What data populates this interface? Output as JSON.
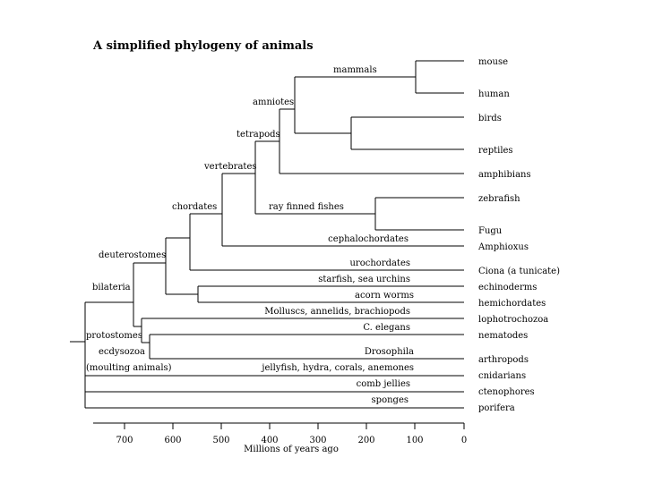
{
  "figure": {
    "title": "A simplified phylogeny of animals",
    "axis": {
      "label": "Millions of years ago",
      "ticks": [
        "700",
        "600",
        "500",
        "400",
        "300",
        "200",
        "100",
        "0"
      ]
    },
    "taxa": {
      "mouse": "mouse",
      "human": "human",
      "birds": "birds",
      "reptiles": "reptiles",
      "amphibians": "amphibians",
      "zebrafish": "zebrafish",
      "fugu": "Fugu",
      "amphioxus": "Amphioxus",
      "ciona": "Ciona (a tunicate)",
      "echinoderms": "echinoderms",
      "hemichordates": "hemichordates",
      "lophotrochozoa": "lophotrochozoa",
      "nematodes": "nematodes",
      "arthropods": "arthropods",
      "cnidarians": "cnidarians",
      "ctenophores": "ctenophores",
      "porifera": "porifera"
    },
    "clades": {
      "mammals": "mammals",
      "amniotes": "amniotes",
      "tetrapods": "tetrapods",
      "vertebrates": "vertebrates",
      "chordates": "chordates",
      "deuterostomes": "deuterostomes",
      "bilateria": "bilateria",
      "protostomes": "protostomes",
      "ecdysozoa": "ecdysozoa",
      "moulting": "(moulting animals)"
    },
    "branches": {
      "ray_finned_fishes": "ray finned fishes",
      "cephalochordates": "cephalochordates",
      "urochordates": "urochordates",
      "starfish": "starfish, sea urchins",
      "acorn_worms": "acorn worms",
      "molluscs": "Molluscs, annelids, brachiopods",
      "c_elegans": "C. elegans",
      "drosophila": "Drosophila",
      "jellyfish": "jellyfish, hydra, corals, anemones",
      "comb_jellies": "comb jellies",
      "sponges": "sponges"
    }
  }
}
